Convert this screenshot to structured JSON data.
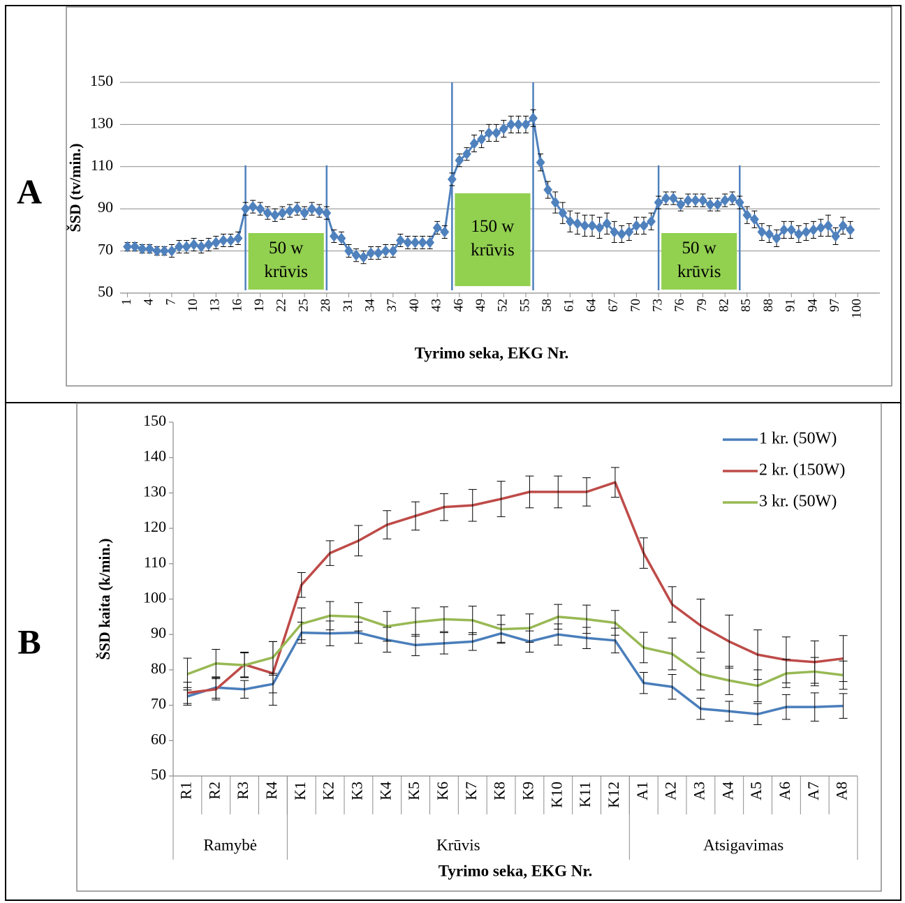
{
  "chart_data": [
    {
      "type": "line",
      "panel_label": "A",
      "ylabel": "ŠSD (tv/min.)",
      "xlabel": "Tyrimo seka, EKG Nr.",
      "x": [
        1,
        2,
        3,
        4,
        5,
        6,
        7,
        8,
        9,
        10,
        11,
        12,
        13,
        14,
        15,
        16,
        17,
        18,
        19,
        20,
        21,
        22,
        23,
        24,
        25,
        26,
        27,
        28,
        29,
        30,
        31,
        32,
        33,
        34,
        35,
        36,
        37,
        38,
        39,
        40,
        41,
        42,
        43,
        44,
        45,
        46,
        47,
        48,
        49,
        50,
        51,
        52,
        53,
        54,
        55,
        56,
        57,
        58,
        59,
        60,
        61,
        62,
        63,
        64,
        65,
        66,
        67,
        68,
        69,
        70,
        71,
        72,
        73,
        74,
        75,
        76,
        77,
        78,
        79,
        80,
        81,
        82,
        83,
        84,
        85,
        86,
        87,
        88,
        89,
        90,
        91,
        92,
        93,
        94,
        95,
        96,
        97,
        98,
        99
      ],
      "series": [
        {
          "color": "#4f81bd",
          "values": [
            72,
            72,
            71,
            71,
            70,
            70,
            70,
            72,
            72,
            73,
            72,
            73,
            74,
            75,
            75,
            76,
            90,
            91,
            90,
            88,
            87,
            88,
            89,
            90,
            88,
            90,
            89,
            88,
            77,
            76,
            70,
            68,
            67,
            69,
            69,
            70,
            70,
            75,
            74,
            74,
            74,
            74,
            81,
            79,
            104,
            113,
            116,
            121,
            123,
            126,
            126,
            128,
            130,
            130,
            130,
            133,
            112,
            99,
            93,
            88,
            84,
            83,
            82,
            82,
            81,
            83,
            79,
            78,
            79,
            82,
            82,
            84,
            93,
            95,
            95,
            92,
            94,
            94,
            94,
            92,
            92,
            94,
            95,
            93,
            87,
            85,
            79,
            78,
            76,
            80,
            80,
            78,
            79,
            80,
            81,
            82,
            77,
            82,
            80
          ],
          "errors": [
            2,
            2,
            2,
            2,
            2,
            2,
            3,
            3,
            3,
            3,
            3,
            3,
            3,
            3,
            3,
            3,
            3,
            3,
            3,
            3,
            3,
            3,
            3,
            3,
            3,
            3,
            3,
            3,
            3,
            3,
            3,
            3,
            3,
            3,
            3,
            3,
            3,
            3,
            3,
            3,
            3,
            3,
            3,
            3,
            3,
            3,
            3,
            4,
            4,
            4,
            4,
            4,
            4,
            4,
            4,
            4,
            4,
            4,
            5,
            5,
            5,
            5,
            5,
            5,
            5,
            5,
            5,
            4,
            4,
            4,
            4,
            4,
            3,
            3,
            3,
            3,
            3,
            3,
            3,
            3,
            3,
            3,
            3,
            3,
            4,
            4,
            4,
            4,
            4,
            4,
            4,
            4,
            4,
            4,
            4,
            5,
            4,
            4,
            4
          ]
        }
      ],
      "xlim": [
        0,
        103
      ],
      "xticks": [
        1,
        4,
        7,
        10,
        13,
        16,
        19,
        22,
        25,
        28,
        31,
        34,
        37,
        40,
        43,
        46,
        49,
        52,
        55,
        58,
        61,
        64,
        67,
        70,
        73,
        76,
        79,
        82,
        85,
        88,
        91,
        94,
        97,
        100
      ],
      "ylim": [
        50,
        150
      ],
      "yticks": [
        50,
        70,
        90,
        110,
        130,
        150
      ],
      "grid": true,
      "marker": "diamond",
      "regions": [
        {
          "from": 17,
          "to": 28,
          "label": [
            "50 w",
            "krūvis"
          ]
        },
        {
          "from": 45,
          "to": 56,
          "label": [
            "150 w",
            "krūvis"
          ]
        },
        {
          "from": 73,
          "to": 84,
          "label": [
            "50 w",
            "krūvis"
          ]
        }
      ],
      "region_color": "#92d050"
    },
    {
      "type": "line",
      "panel_label": "B",
      "ylabel": "ŠSD kaita (k/min.)",
      "xlabel": "Tyrimo seka, EKG Nr.",
      "categories": [
        "R1",
        "R2",
        "R3",
        "R4",
        "K1",
        "K2",
        "K3",
        "K4",
        "K5",
        "K6",
        "K7",
        "K8",
        "K9",
        "K10",
        "K11",
        "K12",
        "A1",
        "A2",
        "A3",
        "A4",
        "A5",
        "A6",
        "A7",
        "A8"
      ],
      "groups": [
        {
          "label": "Ramybė",
          "span": [
            "R1",
            "R4"
          ]
        },
        {
          "label": "Krūvis",
          "span": [
            "K1",
            "K12"
          ]
        },
        {
          "label": "Atsigavimas",
          "span": [
            "A1",
            "A8"
          ]
        }
      ],
      "series": [
        {
          "name": "1 kr. (50W)",
          "color": "#4a7ebb",
          "values": [
            72.5,
            75,
            74.5,
            76,
            90.5,
            90.3,
            90.5,
            88.5,
            87,
            87.5,
            88,
            90.3,
            88,
            90,
            89,
            88.3,
            76.3,
            75.2,
            69,
            68.3,
            67.5,
            69.5,
            69.5,
            69.8
          ],
          "errors": [
            2.5,
            3,
            2.5,
            2.5,
            3,
            3.5,
            3,
            3.5,
            3,
            3,
            2.5,
            2.5,
            3,
            3,
            3,
            3.5,
            3,
            3.5,
            3,
            2.8,
            3,
            3.5,
            4,
            3.5
          ]
        },
        {
          "name": "2 kr. (150W)",
          "color": "#be4b48",
          "values": [
            73.5,
            74.5,
            81.5,
            79,
            104,
            113,
            116.5,
            121,
            123.5,
            126,
            126.5,
            128.3,
            130.3,
            130.3,
            130.3,
            133,
            113,
            98.5,
            92.5,
            88,
            84.3,
            82.8,
            82.2,
            83.2
          ],
          "errors": [
            3,
            3,
            3.5,
            9,
            3.5,
            3.5,
            4.3,
            4,
            4,
            3.8,
            4.5,
            5,
            4.5,
            4.5,
            4,
            4.2,
            4.3,
            5,
            7.5,
            7.5,
            7,
            6.5,
            6,
            6.5
          ]
        },
        {
          "name": "3 kr. (50W)",
          "color": "#98b954",
          "values": [
            78.8,
            81.8,
            81.3,
            83.5,
            93,
            95.3,
            95,
            92.3,
            93.5,
            94.3,
            94,
            91.5,
            91.8,
            95,
            94.3,
            93.3,
            86.3,
            84.5,
            78.8,
            77,
            75.5,
            79,
            79.5,
            78.5
          ],
          "errors": [
            4.5,
            4,
            3.5,
            4.5,
            4.5,
            4,
            4,
            4.2,
            4,
            3.5,
            4,
            4,
            4,
            3.5,
            4,
            3.5,
            4.3,
            4.5,
            4.5,
            4,
            4.5,
            4,
            4,
            4
          ]
        }
      ],
      "ylim": [
        50,
        150
      ],
      "yticks": [
        50,
        60,
        70,
        80,
        90,
        100,
        110,
        120,
        130,
        140,
        150
      ],
      "grid": false,
      "legend": "upper right"
    }
  ]
}
